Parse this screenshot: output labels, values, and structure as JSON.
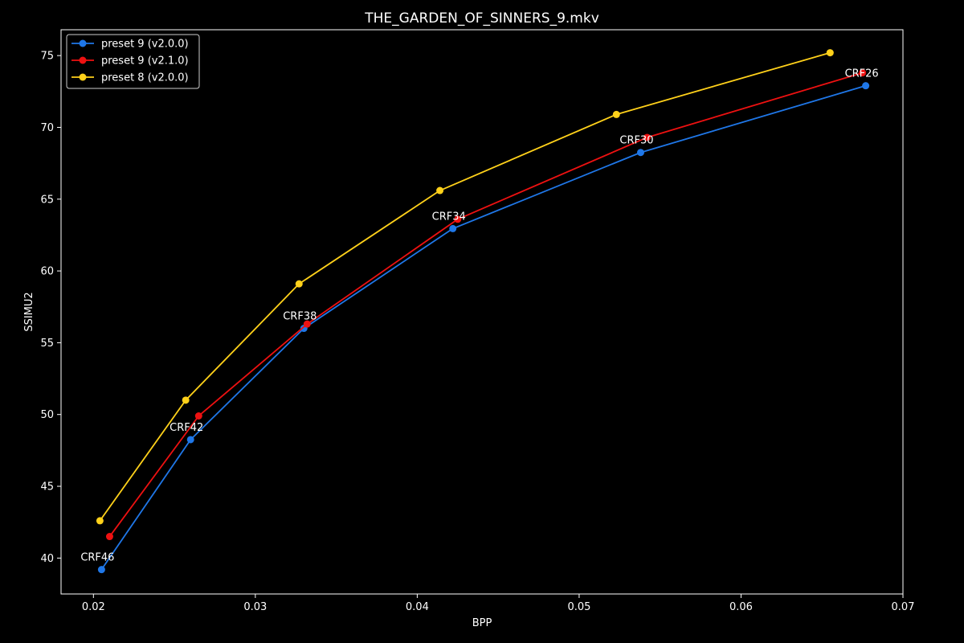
{
  "chart_data": {
    "type": "line",
    "title": "THE_GARDEN_OF_SINNERS_9.mkv",
    "xlabel": "BPP",
    "ylabel": "SSIMU2",
    "xlim": [
      0.018,
      0.07
    ],
    "ylim": [
      37.5,
      76.8
    ],
    "xticks": [
      0.02,
      0.03,
      0.04,
      0.05,
      0.06,
      0.07
    ],
    "xtick_labels": [
      "0.02",
      "0.03",
      "0.04",
      "0.05",
      "0.06",
      "0.07"
    ],
    "yticks": [
      40,
      45,
      50,
      55,
      60,
      65,
      70,
      75
    ],
    "ytick_labels": [
      "40",
      "45",
      "50",
      "55",
      "60",
      "65",
      "70",
      "75"
    ],
    "grid": false,
    "legend_position": "top-left",
    "background": "#000000",
    "foreground": "#ffffff",
    "series": [
      {
        "name": "preset 9 (v2.0.0)",
        "color": "#1f77e8",
        "x": [
          0.0205,
          0.026,
          0.033,
          0.0422,
          0.0538,
          0.0677
        ],
        "y": [
          39.2,
          48.25,
          56.0,
          62.95,
          68.25,
          72.9
        ]
      },
      {
        "name": "preset 9 (v2.1.0)",
        "color": "#ee1111",
        "x": [
          0.021,
          0.0265,
          0.0332,
          0.0425,
          0.0542,
          0.0675
        ],
        "y": [
          41.5,
          49.9,
          56.3,
          63.6,
          69.3,
          73.8
        ]
      },
      {
        "name": "preset 8 (v2.0.0)",
        "color": "#ffd11a",
        "x": [
          0.0204,
          0.0257,
          0.0327,
          0.0414,
          0.0523,
          0.0655
        ],
        "y": [
          42.6,
          51.0,
          59.1,
          65.6,
          70.9,
          75.2
        ]
      }
    ],
    "annotations": [
      {
        "text": "CRF46",
        "x": 0.0205,
        "y": 39.2
      },
      {
        "text": "CRF42",
        "x": 0.026,
        "y": 48.25
      },
      {
        "text": "CRF38",
        "x": 0.033,
        "y": 56.0
      },
      {
        "text": "CRF34",
        "x": 0.0422,
        "y": 62.95
      },
      {
        "text": "CRF30",
        "x": 0.0538,
        "y": 68.25
      },
      {
        "text": "CRF26",
        "x": 0.0677,
        "y": 72.9
      }
    ]
  }
}
